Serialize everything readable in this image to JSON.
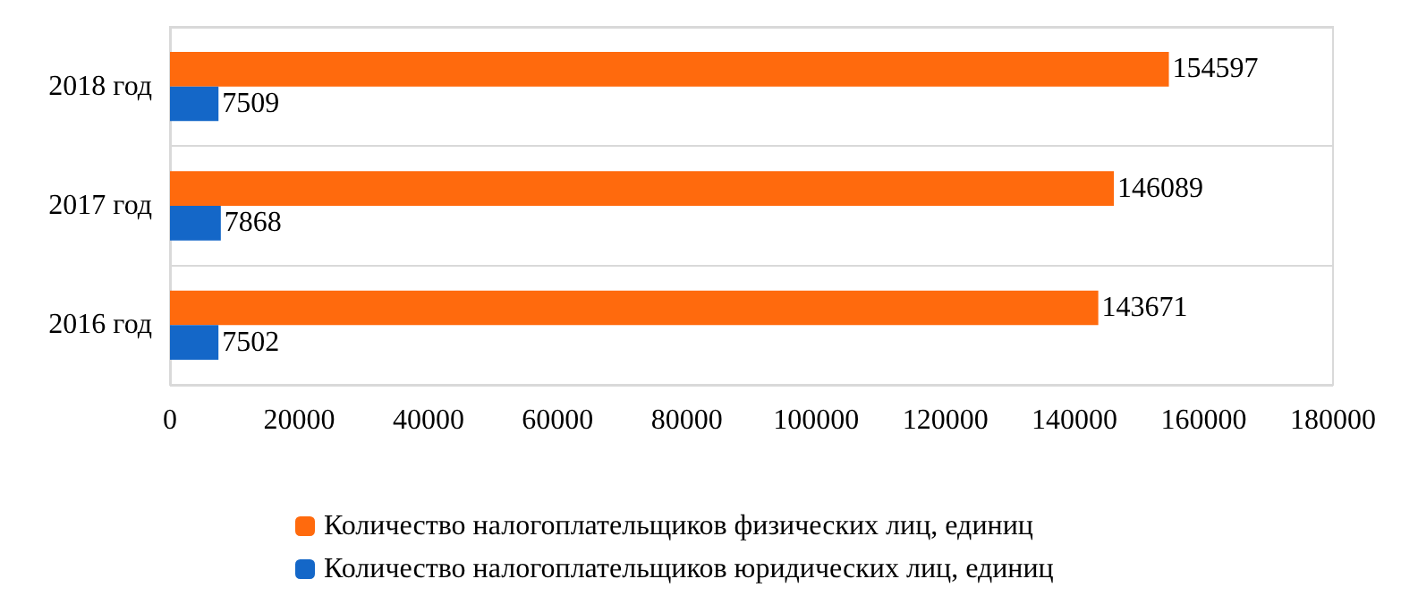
{
  "chart_data": {
    "type": "bar",
    "orientation": "horizontal",
    "categories": [
      "2018 год",
      "2017 год",
      "2016 год"
    ],
    "series": [
      {
        "name": "Количество налогоплательщиков физических лиц, единиц",
        "color": "#ff6a0d",
        "values": [
          154597,
          146089,
          143671
        ]
      },
      {
        "name": "Количество налогоплательщиков юридических лиц, единиц",
        "color": "#1467c8",
        "values": [
          7509,
          7868,
          7502
        ]
      }
    ],
    "xlim": [
      0,
      180000
    ],
    "xticks": [
      0,
      20000,
      40000,
      60000,
      80000,
      100000,
      120000,
      140000,
      160000,
      180000
    ],
    "data_labels": true,
    "grid": "y",
    "legend": "bottom"
  }
}
